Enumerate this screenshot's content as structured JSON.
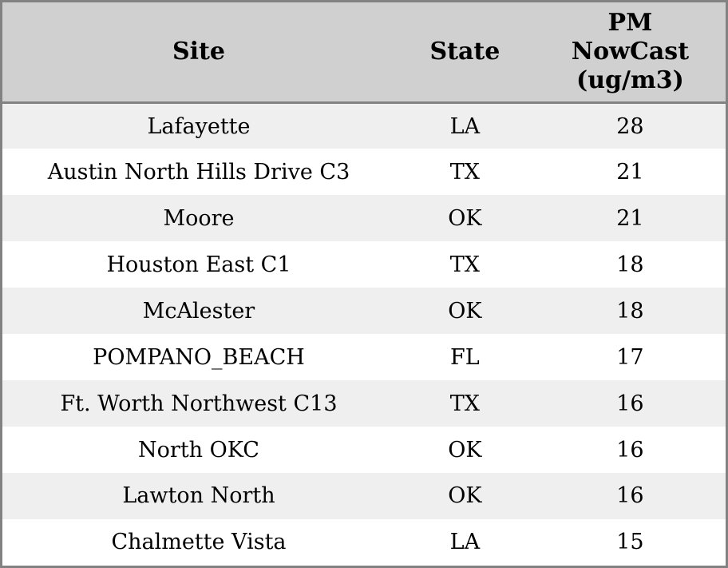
{
  "chart_data": {
    "type": "table",
    "columns": [
      "Site",
      "State",
      "PM\nNowCast\n(ug/m3)"
    ],
    "column_keys": [
      "site",
      "state",
      "pm_nowcast_ug_m3"
    ],
    "rows": [
      [
        "Lafayette",
        "LA",
        28
      ],
      [
        "Austin North Hills Drive C3",
        "TX",
        21
      ],
      [
        "Moore",
        "OK",
        21
      ],
      [
        "Houston East C1",
        "TX",
        18
      ],
      [
        "McAlester",
        "OK",
        18
      ],
      [
        "POMPANO_BEACH",
        "FL",
        17
      ],
      [
        "Ft. Worth Northwest C13",
        "TX",
        16
      ],
      [
        "North OKC",
        "OK",
        16
      ],
      [
        "Lawton North",
        "OK",
        16
      ],
      [
        "Chalmette Vista",
        "LA",
        15
      ]
    ],
    "layout": {
      "header_lines_in_pm_column": 3,
      "zebra_striping": true,
      "alignment": "center"
    }
  },
  "colors": {
    "header_bg": "#d0d0d0",
    "border": "#828282",
    "row_alt_bg": "#efefef",
    "row_bg": "#ffffff",
    "text": "#000000"
  }
}
